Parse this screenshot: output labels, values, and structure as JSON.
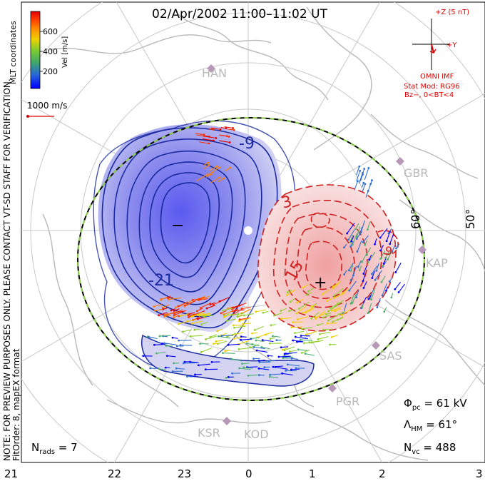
{
  "header": {
    "title": "02/Apr/2002 11:00–11:02 UT"
  },
  "colorbar": {
    "title": "Vel [m/s]",
    "coord_label": "MLT coordinates",
    "ticks": [
      "600",
      "400",
      "200"
    ],
    "colors": [
      "#0000ff",
      "#3070d0",
      "#50b070",
      "#90d030",
      "#f0d000",
      "#ff8000",
      "#ff3000",
      "#e00000"
    ]
  },
  "scale_vector": {
    "label": "1000 m/s"
  },
  "imf": {
    "top_label": "+Z (5 nT)",
    "y_label": "+Y",
    "source": "OMNI IMF",
    "model": "Stat Mod: RG96",
    "condition": "Bz−, 0<BT<4"
  },
  "side_note": {
    "line1": "NOTE: FOR PREVIEW PURPOSES ONLY. PLEASE CONTACT VT-SD STAFF FOR VERIFICATION.",
    "line2": "FitOrder: 8, mapEX format"
  },
  "potential_labels": {
    "neg_contour_a": "-9",
    "neg_contour_b": "-21",
    "pos_contour_a": "3",
    "pos_contour_b": "15",
    "pos_contour_c": "9",
    "min_marker": "−",
    "max_marker": "+"
  },
  "radars": {
    "han": "HAN",
    "gbr": "GBR",
    "kap": "KAP",
    "sas": "SAS",
    "pgr": "PGR",
    "ksr": "KSR",
    "kod": "KOD"
  },
  "latitude_labels": {
    "lat60": "60°",
    "lat50": "50°"
  },
  "stats": {
    "phi_pc": {
      "symbol": "Φ",
      "sub": "pc",
      "value": " = 61 kV"
    },
    "lambda_hm": {
      "symbol": "Λ",
      "sub": "HM",
      "value": " = 61°"
    },
    "n_vc": {
      "symbol": "N",
      "sub": "vc",
      "value": " = 488"
    },
    "n_rads": {
      "symbol": "N",
      "sub": "rads",
      "value": " = 7"
    }
  },
  "mlt_axis": {
    "ticks": [
      "21",
      "22",
      "23",
      "0",
      "1",
      "2",
      "3"
    ]
  }
}
